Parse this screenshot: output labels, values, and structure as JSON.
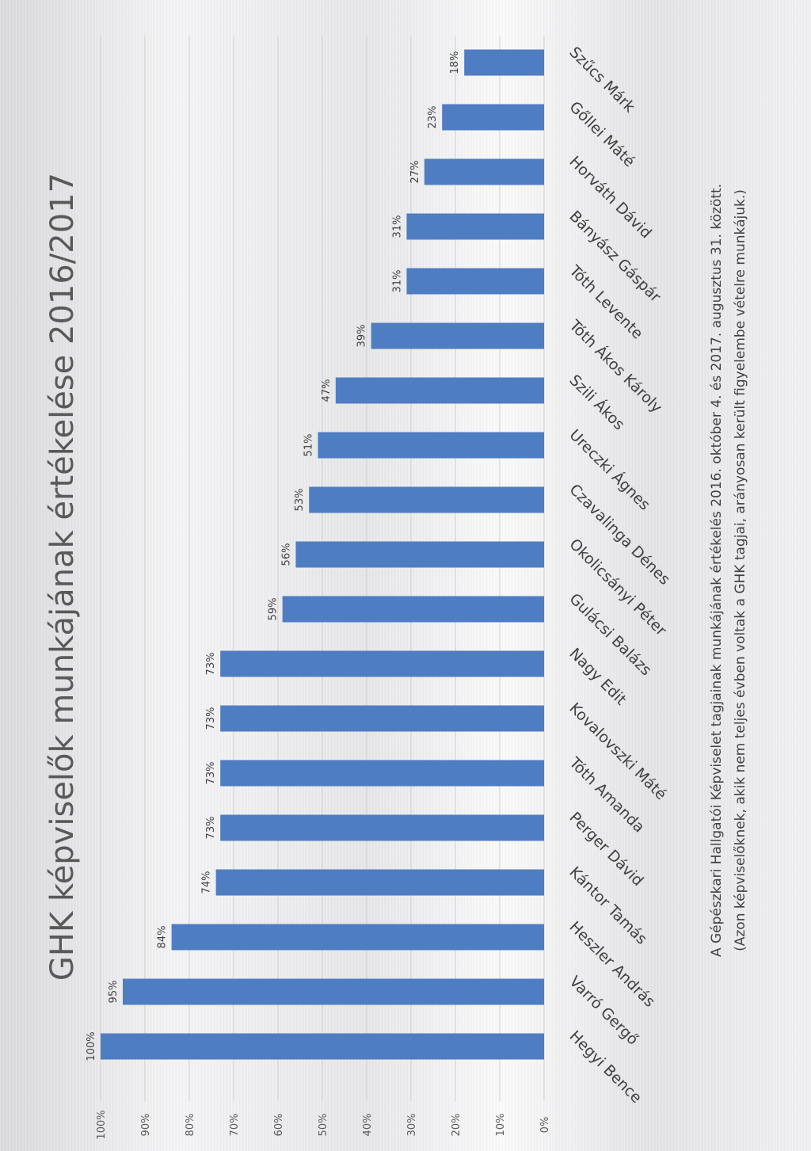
{
  "chart_data": {
    "type": "bar",
    "orientation": "rotated-page",
    "title": "GHK képviselők munkájának értékelése 2016/2017",
    "categories": [
      "Hegyi Bence",
      "Varró Gergő",
      "Heszler András",
      "Kántor Tamás",
      "Perger Dávid",
      "Tóth Amanda",
      "Kovalovszki Máté",
      "Nagy Edit",
      "Gulácsi Balázs",
      "Okolicsányi Péter",
      "Czavalinga Dénes",
      "Ureczki Ágnes",
      "Szili Ákos",
      "Tóth Ákos Károly",
      "Tóth Levente",
      "Bányász Gáspár",
      "Horváth Dávid",
      "Gőllei Máté",
      "Szűcs Márk"
    ],
    "values": [
      100,
      95,
      84,
      74,
      73,
      73,
      73,
      73,
      59,
      56,
      53,
      51,
      47,
      39,
      31,
      31,
      27,
      23,
      18
    ],
    "value_labels": [
      "100%",
      "95%",
      "84%",
      "74%",
      "73%",
      "73%",
      "73%",
      "73%",
      "59%",
      "56%",
      "53%",
      "51%",
      "47%",
      "39%",
      "31%",
      "31%",
      "27%",
      "23%",
      "18%"
    ],
    "ylim": [
      0,
      100
    ],
    "ticks": [
      "0%",
      "10%",
      "20%",
      "30%",
      "40%",
      "50%",
      "60%",
      "70%",
      "80%",
      "90%",
      "100%"
    ],
    "grid": true,
    "bar_color": "#4f7dc2",
    "footnote_line1": "A Gépészkari Hallgatói Képviselet tagjainak munkájának értékelés 2016. október 4. és 2017. augusztus 31. között.",
    "footnote_line2": "(Azon képviselőknek, akik nem teljes évben voltak a GHK tagjai, arányosan került figyelembe vételre munkájuk.)"
  }
}
